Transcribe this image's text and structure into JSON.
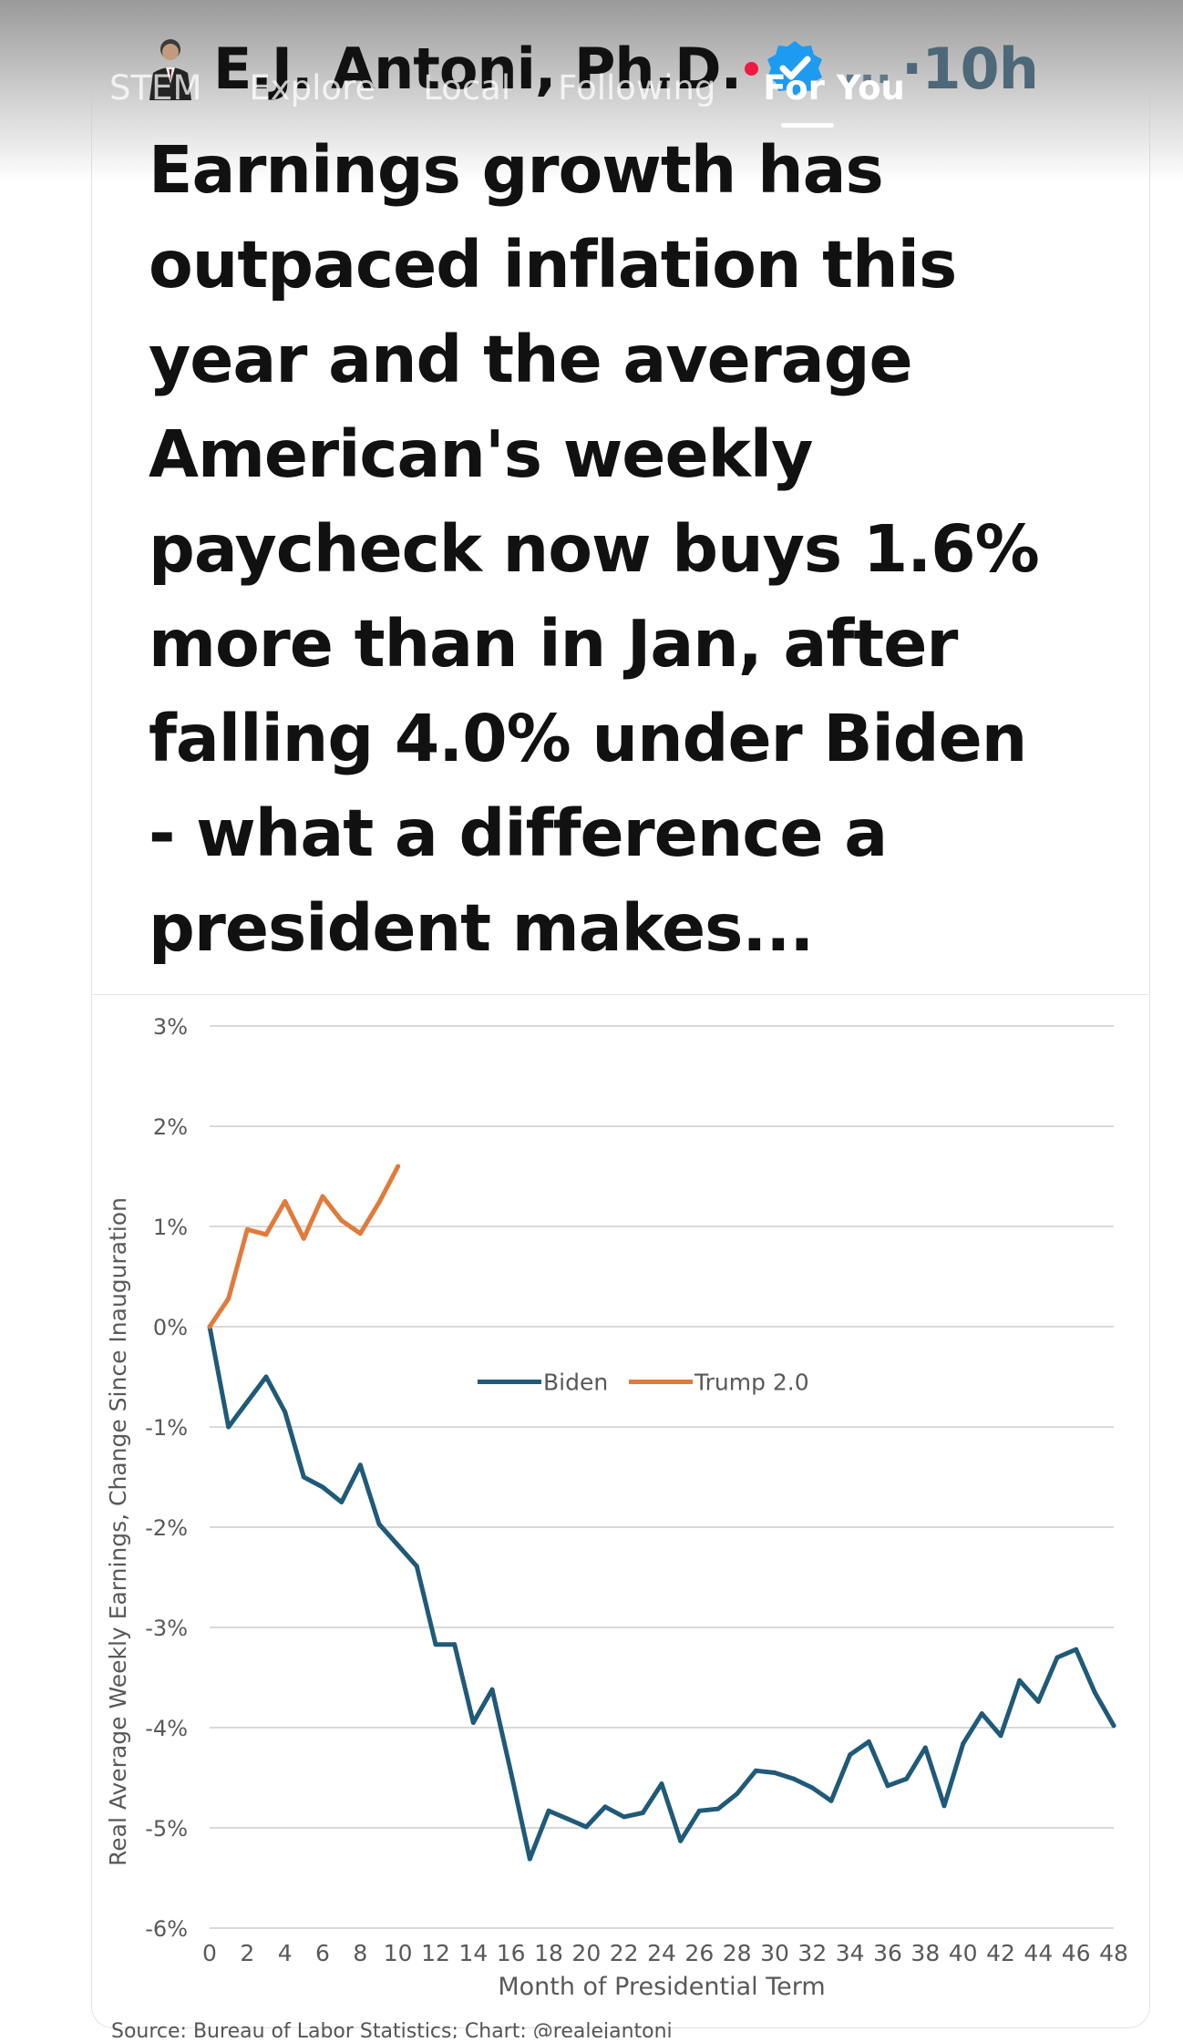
{
  "nav": {
    "tabs": [
      {
        "label": "STEM"
      },
      {
        "label": "Explore"
      },
      {
        "label": "Local"
      },
      {
        "label": "Following"
      },
      {
        "label": "For You"
      }
    ],
    "active_tab": "For You"
  },
  "post": {
    "author": "E.J. Antoni, Ph.D.",
    "menu_glyph": "...",
    "time": "·10h",
    "text_lines": [
      "Earnings growth has",
      "outpaced inflation this",
      "year and the average",
      "American's weekly",
      "paycheck now buys 1.6%",
      "more than in Jan, after",
      "falling 4.0% under Biden",
      "- what a difference a",
      "president makes..."
    ],
    "source": "Source: Bureau of Labor Statistics; Chart: @realejantoni"
  },
  "colors": {
    "biden": "#1f5a78",
    "trump": "#e07b3c",
    "verified": "#1d9bf0",
    "grid": "#d9d9d9",
    "axis_text": "#595959"
  },
  "chart_data": {
    "type": "line",
    "title": "",
    "xlabel": "Month of Presidential Term",
    "ylabel": "Real Average Weekly Earnings, Change Since Inauguration",
    "xlim": [
      0,
      48
    ],
    "ylim": [
      -6,
      3
    ],
    "x_ticks": [
      0,
      2,
      4,
      6,
      8,
      10,
      12,
      14,
      16,
      18,
      20,
      22,
      24,
      26,
      28,
      30,
      32,
      34,
      36,
      38,
      40,
      42,
      44,
      46,
      48
    ],
    "y_ticks": [
      3,
      2,
      1,
      0,
      -1,
      -2,
      -3,
      -4,
      -5,
      -6
    ],
    "y_tick_labels": [
      "3%",
      "2%",
      "1%",
      "0%",
      "-1%",
      "-2%",
      "-3%",
      "-4%",
      "-5%",
      "-6%"
    ],
    "legend": "center",
    "series": [
      {
        "name": "Biden",
        "x": [
          0,
          1,
          2,
          3,
          4,
          5,
          6,
          7,
          8,
          9,
          10,
          11,
          12,
          13,
          14,
          15,
          16,
          17,
          18,
          19,
          20,
          21,
          22,
          23,
          24,
          25,
          26,
          27,
          28,
          29,
          30,
          31,
          32,
          33,
          34,
          35,
          36,
          37,
          38,
          39,
          40,
          41,
          42,
          43,
          44,
          45,
          46,
          47,
          48
        ],
        "values": [
          0,
          -1.0,
          -0.75,
          -0.5,
          -0.85,
          -1.5,
          -1.6,
          -1.75,
          -1.38,
          -1.97,
          -2.18,
          -2.39,
          -3.17,
          -3.17,
          -3.95,
          -3.62,
          -4.45,
          -5.31,
          -4.83,
          -4.91,
          -4.99,
          -4.79,
          -4.89,
          -4.85,
          -4.56,
          -5.13,
          -4.83,
          -4.81,
          -4.66,
          -4.43,
          -4.45,
          -4.51,
          -4.6,
          -4.73,
          -4.27,
          -4.14,
          -4.58,
          -4.51,
          -4.2,
          -4.78,
          -4.16,
          -3.86,
          -4.08,
          -3.53,
          -3.74,
          -3.3,
          -3.22,
          -3.65,
          -3.98
        ]
      },
      {
        "name": "Trump 2.0",
        "x": [
          0,
          1,
          2,
          3,
          4,
          5,
          6,
          7,
          8,
          9,
          10
        ],
        "values": [
          0,
          0.28,
          0.97,
          0.92,
          1.25,
          0.88,
          1.3,
          1.06,
          0.93,
          1.24,
          1.6
        ]
      }
    ]
  }
}
